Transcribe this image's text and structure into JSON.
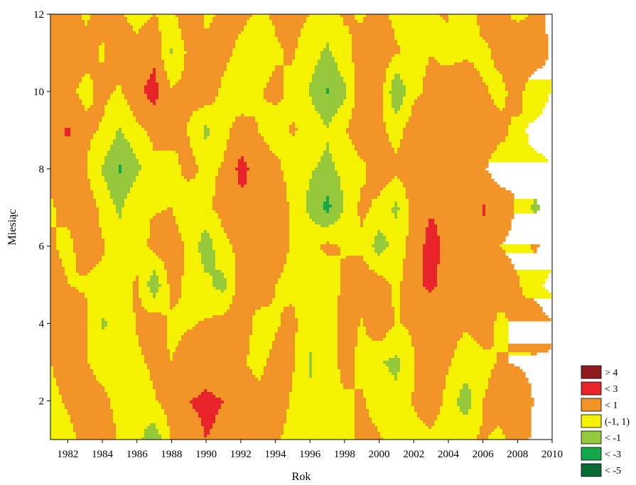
{
  "chart_data": {
    "type": "heatmap",
    "subtype": "contour",
    "title": "",
    "xlabel": "Rok",
    "ylabel": "Miesiąc",
    "xlim": [
      1981,
      2010
    ],
    "ylim": [
      1,
      12
    ],
    "x_ticks": [
      1982,
      1984,
      1986,
      1988,
      1990,
      1992,
      1994,
      1996,
      1998,
      2000,
      2002,
      2004,
      2006,
      2008,
      2010
    ],
    "y_ticks": [
      2,
      4,
      6,
      8,
      10,
      12
    ],
    "legend_position": "bottom-right",
    "legend": [
      {
        "label": "> 4",
        "color": "#8e1c1c"
      },
      {
        "label": "< 3",
        "color": "#e8232a"
      },
      {
        "label": "< 1",
        "color": "#f39428"
      },
      {
        "label": "(-1, 1)",
        "color": "#f4f200"
      },
      {
        "label": "< -1",
        "color": "#96c83c"
      },
      {
        "label": "< -3",
        "color": "#12a84b"
      },
      {
        "label": "< -5",
        "color": "#0a6b36"
      }
    ],
    "years": [
      1981,
      1982,
      1983,
      1984,
      1985,
      1986,
      1987,
      1988,
      1989,
      1990,
      1991,
      1992,
      1993,
      1994,
      1995,
      1996,
      1997,
      1998,
      1999,
      2000,
      2001,
      2002,
      2003,
      2004,
      2005,
      2006,
      2007,
      2008,
      2009,
      2010
    ],
    "months": [
      1,
      2,
      3,
      4,
      5,
      6,
      7,
      8,
      9,
      10,
      11,
      12
    ],
    "z": [
      [
        0.2,
        0.5,
        1.5,
        2.2,
        0.8,
        -0.3,
        -2.5,
        1.2,
        2.6,
        3.0,
        2.8,
        2.5,
        1.5,
        1.2,
        0.5,
        -0.5,
        0.0,
        0.4,
        1.5,
        1.2,
        0.3,
        0.0,
        0.5,
        -0.6,
        0.8,
        1.2,
        0.6,
        2.0,
        0.5,
        0.2
      ],
      [
        0.5,
        1.2,
        1.8,
        1.5,
        0.3,
        -0.5,
        0.8,
        2.0,
        3.0,
        3.2,
        3.0,
        2.4,
        1.5,
        1.8,
        0.8,
        -0.8,
        0.5,
        0.8,
        1.2,
        0.3,
        -0.5,
        1.2,
        2.5,
        0.2,
        -2.2,
        1.0,
        1.8,
        2.5,
        0.8,
        0.5
      ],
      [
        1.0,
        1.8,
        1.2,
        0.2,
        -0.8,
        0.5,
        1.5,
        1.0,
        2.0,
        2.5,
        2.2,
        1.2,
        0.5,
        1.5,
        1.2,
        -1.2,
        0.2,
        1.5,
        0.5,
        -0.8,
        -1.5,
        0.8,
        2.6,
        1.2,
        0.0,
        0.5,
        1.2,
        0.8,
        0.5,
        0.8
      ],
      [
        1.5,
        2.4,
        1.5,
        -1.2,
        -0.5,
        1.2,
        2.4,
        0.5,
        0.8,
        1.2,
        1.8,
        2.6,
        0.0,
        0.8,
        1.5,
        -0.5,
        -0.8,
        2.2,
        0.8,
        2.6,
        0.8,
        1.5,
        1.0,
        1.8,
        1.2,
        2.0,
        0.5,
        1.5,
        2.8,
        1.2
      ],
      [
        2.2,
        1.0,
        0.8,
        0.5,
        -0.8,
        1.5,
        -2.6,
        1.8,
        0.5,
        -0.5,
        -1.8,
        2.0,
        2.6,
        1.0,
        0.5,
        0.0,
        -0.3,
        1.5,
        2.5,
        2.0,
        0.5,
        2.4,
        3.5,
        1.8,
        1.0,
        1.5,
        2.0,
        1.2,
        -0.2,
        -2.0
      ],
      [
        1.2,
        0.5,
        1.8,
        1.2,
        0.2,
        -0.5,
        1.8,
        2.2,
        0.5,
        -2.2,
        0.5,
        1.5,
        2.0,
        1.8,
        0.8,
        0.2,
        1.5,
        0.8,
        0.5,
        -2.0,
        0.0,
        1.8,
        3.8,
        2.4,
        1.2,
        2.5,
        1.0,
        0.5,
        1.2,
        0.6
      ],
      [
        0.8,
        1.5,
        2.2,
        0.5,
        -1.5,
        1.0,
        0.8,
        1.0,
        -0.8,
        0.5,
        1.8,
        2.5,
        3.0,
        2.6,
        0.5,
        -1.5,
        -3.6,
        -0.8,
        1.5,
        0.5,
        -1.5,
        2.0,
        2.8,
        2.2,
        1.5,
        3.2,
        2.0,
        0.8,
        -1.5,
        0.5
      ],
      [
        1.5,
        2.5,
        1.2,
        -1.2,
        -3.2,
        -1.5,
        0.5,
        0.2,
        1.8,
        0.5,
        1.2,
        3.6,
        2.2,
        1.5,
        0.2,
        -0.8,
        -1.5,
        -0.5,
        0.5,
        2.2,
        1.5,
        2.5,
        3.0,
        2.8,
        2.5,
        1.2,
        0.0,
        1.0,
        0.5,
        0.8
      ],
      [
        2.2,
        3.2,
        1.5,
        0.8,
        -1.2,
        0.5,
        1.5,
        1.8,
        0.8,
        -1.5,
        0.3,
        2.0,
        1.0,
        0.0,
        1.2,
        0.5,
        -0.8,
        0.8,
        2.5,
        1.5,
        0.2,
        2.2,
        2.8,
        2.5,
        2.8,
        2.0,
        1.5,
        0.5,
        1.5,
        2.0
      ],
      [
        2.5,
        1.5,
        0.5,
        1.5,
        0.8,
        2.5,
        3.8,
        1.2,
        1.8,
        2.5,
        0.5,
        -0.5,
        0.8,
        1.5,
        0.5,
        -1.2,
        -3.2,
        -1.5,
        2.6,
        2.2,
        -3.0,
        0.5,
        1.5,
        2.6,
        2.2,
        1.2,
        0.5,
        1.8,
        -0.5,
        1.2
      ],
      [
        1.8,
        2.2,
        1.5,
        0.8,
        1.8,
        1.5,
        2.4,
        -1.2,
        1.5,
        1.2,
        1.6,
        0.5,
        -0.5,
        0.8,
        1.2,
        0.0,
        -1.5,
        0.5,
        1.8,
        2.5,
        1.2,
        0.5,
        1.0,
        0.2,
        0.8,
        0.5,
        1.5,
        2.8,
        2.2,
        0.5
      ],
      [
        1.2,
        1.5,
        0.8,
        1.5,
        1.2,
        0.5,
        1.0,
        0.5,
        2.6,
        0.8,
        1.2,
        1.5,
        0.8,
        1.2,
        1.5,
        1.0,
        0.5,
        1.2,
        0.8,
        1.5,
        0.5,
        0.0,
        0.8,
        1.2,
        -1.0,
        2.0,
        1.5,
        0.5,
        1.2,
        0.8
      ]
    ]
  }
}
